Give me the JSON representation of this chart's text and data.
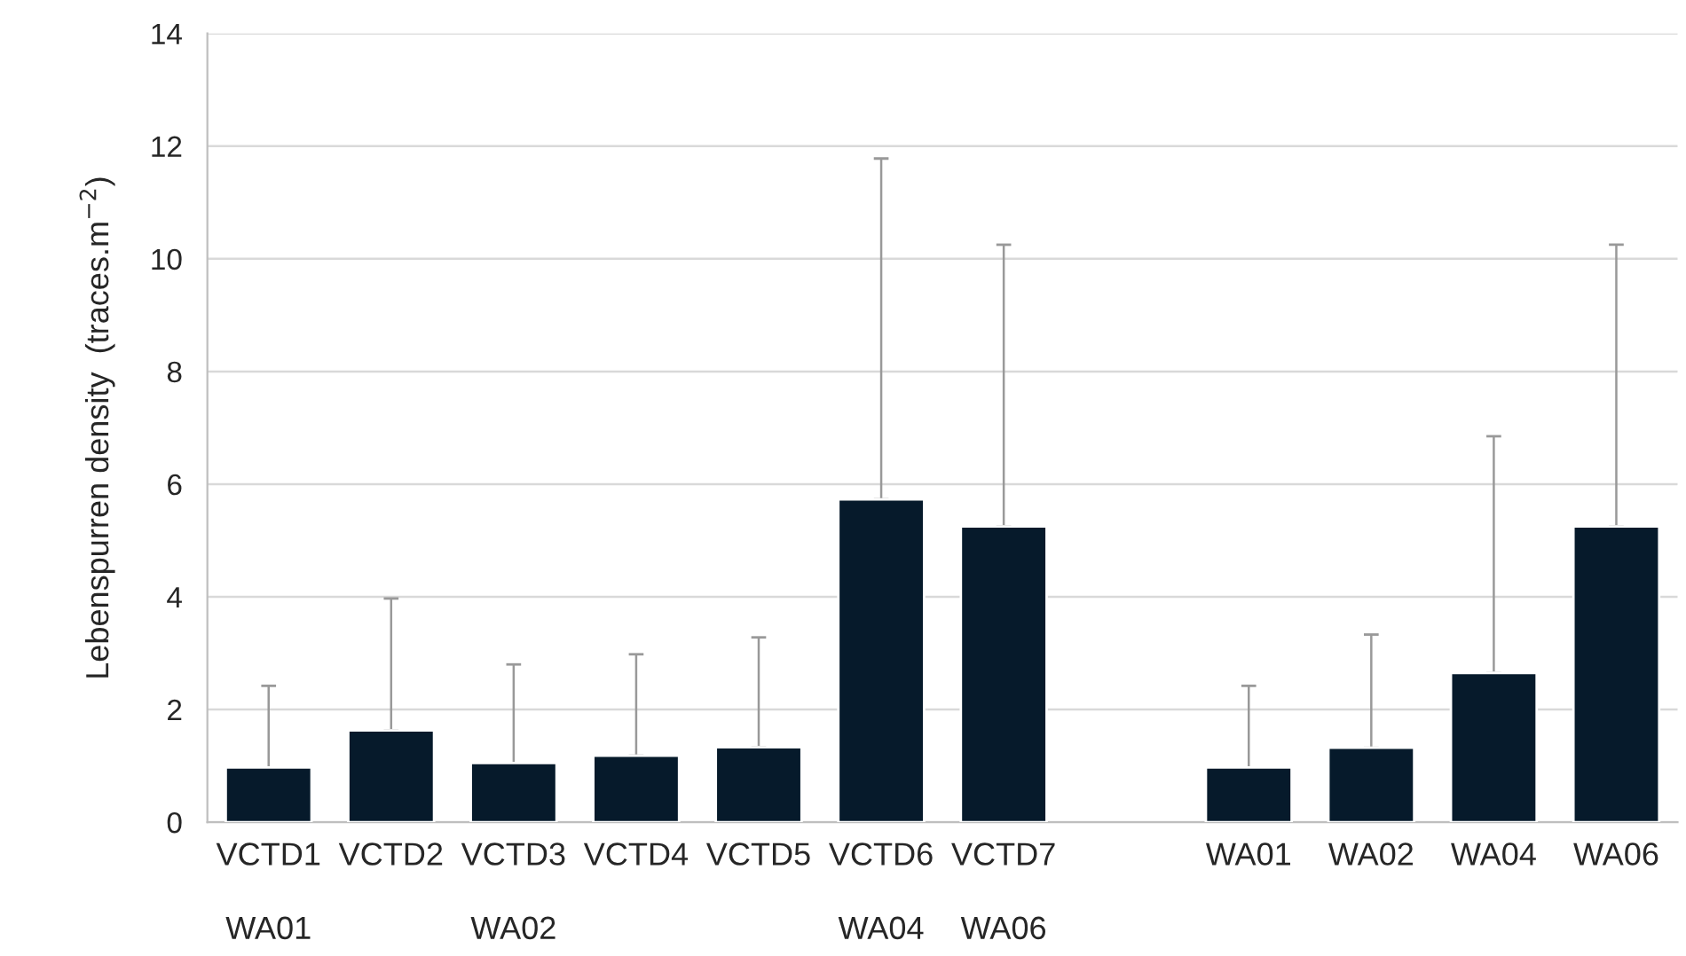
{
  "chart_data": {
    "type": "bar",
    "ylabel": "Lebenspurren density  (traces.m$^{−2}$)",
    "categories": [
      "VCTD1",
      "VCTD2",
      "VCTD3",
      "VCTD4",
      "VCTD5",
      "VCTD6",
      "VCTD7",
      null,
      "WA01",
      "WA02",
      "WA04",
      "WA06"
    ],
    "values": [
      0.97,
      1.63,
      1.05,
      1.18,
      1.33,
      5.73,
      5.25,
      null,
      0.97,
      1.32,
      2.65,
      5.25
    ],
    "errors": [
      [
        0.97,
        2.42
      ],
      [
        1.63,
        3.97
      ],
      [
        1.05,
        2.8
      ],
      [
        1.18,
        2.98
      ],
      [
        1.33,
        3.28
      ],
      [
        5.73,
        11.78
      ],
      [
        5.25,
        10.25
      ],
      null,
      [
        0.97,
        2.42
      ],
      [
        1.32,
        3.33
      ],
      [
        2.65,
        6.85
      ],
      [
        5.25,
        10.25
      ]
    ],
    "color": "#061a2b",
    "ylim": [
      0,
      14
    ],
    "yticks": [
      0,
      2,
      4,
      6,
      8,
      10,
      12,
      14
    ],
    "grid": "y",
    "annotations": [
      "WA01",
      "WA02",
      "WA04",
      "WA06"
    ]
  }
}
